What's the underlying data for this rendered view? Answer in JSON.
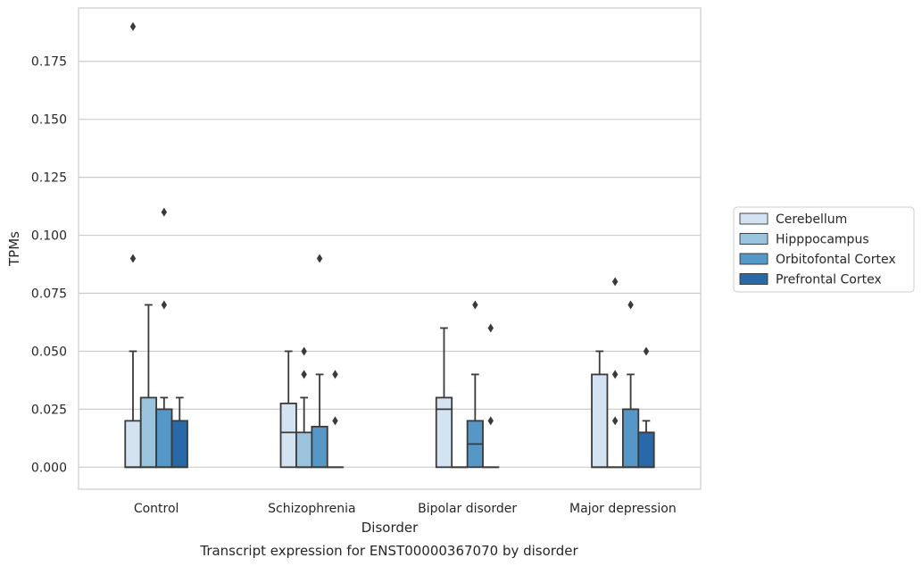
{
  "chart_data": {
    "type": "box",
    "caption": "Transcript expression for ENST00000367070 by disorder",
    "xlabel": "Disorder",
    "ylabel": "TPMs",
    "ylim": [
      -0.0095,
      0.198
    ],
    "yticks": [
      "0.000",
      "0.025",
      "0.050",
      "0.075",
      "0.100",
      "0.125",
      "0.150",
      "0.175"
    ],
    "grid": true,
    "legend_position": "right",
    "categories": [
      "Control",
      "Schizophrenia",
      "Bipolar disorder",
      "Major depression"
    ],
    "series": [
      {
        "name": "Cerebellum",
        "color": "#d4e3f2",
        "boxes": [
          {
            "q1": 0,
            "median": 0,
            "q3": 0.02,
            "whisker_low": 0,
            "whisker_high": 0.05,
            "outliers": [
              0.09,
              0.19
            ]
          },
          {
            "q1": 0,
            "median": 0.015,
            "q3": 0.0275,
            "whisker_low": 0,
            "whisker_high": 0.05,
            "outliers": []
          },
          {
            "q1": 0,
            "median": 0.025,
            "q3": 0.03,
            "whisker_low": 0,
            "whisker_high": 0.06,
            "outliers": []
          },
          {
            "q1": 0,
            "median": 0,
            "q3": 0.04,
            "whisker_low": 0,
            "whisker_high": 0.05,
            "outliers": []
          }
        ]
      },
      {
        "name": "Hipppocampus",
        "color": "#9ac3de",
        "boxes": [
          {
            "q1": 0,
            "median": 0,
            "q3": 0.03,
            "whisker_low": 0,
            "whisker_high": 0.07,
            "outliers": []
          },
          {
            "q1": 0,
            "median": 0,
            "q3": 0.015,
            "whisker_low": 0,
            "whisker_high": 0.03,
            "outliers": [
              0.04,
              0.05
            ]
          },
          {
            "q1": 0,
            "median": 0,
            "q3": 0,
            "whisker_low": 0,
            "whisker_high": 0,
            "outliers": []
          },
          {
            "q1": 0,
            "median": 0,
            "q3": 0,
            "whisker_low": 0,
            "whisker_high": 0,
            "outliers": [
              0.02,
              0.04,
              0.08
            ]
          }
        ]
      },
      {
        "name": "Orbitofontal Cortex",
        "color": "#5597c6",
        "boxes": [
          {
            "q1": 0,
            "median": 0,
            "q3": 0.025,
            "whisker_low": 0,
            "whisker_high": 0.03,
            "outliers": [
              0.07,
              0.11
            ]
          },
          {
            "q1": 0,
            "median": 0,
            "q3": 0.0175,
            "whisker_low": 0,
            "whisker_high": 0.04,
            "outliers": [
              0.09
            ]
          },
          {
            "q1": 0,
            "median": 0.01,
            "q3": 0.02,
            "whisker_low": 0,
            "whisker_high": 0.04,
            "outliers": [
              0.07
            ]
          },
          {
            "q1": 0,
            "median": 0,
            "q3": 0.025,
            "whisker_low": 0,
            "whisker_high": 0.04,
            "outliers": [
              0.07
            ]
          }
        ]
      },
      {
        "name": "Prefrontal Cortex",
        "color": "#2a69a8",
        "boxes": [
          {
            "q1": 0,
            "median": 0,
            "q3": 0.02,
            "whisker_low": 0,
            "whisker_high": 0.03,
            "outliers": []
          },
          {
            "q1": 0,
            "median": 0,
            "q3": 0,
            "whisker_low": 0,
            "whisker_high": 0,
            "outliers": [
              0.02,
              0.04
            ]
          },
          {
            "q1": 0,
            "median": 0,
            "q3": 0,
            "whisker_low": 0,
            "whisker_high": 0,
            "outliers": [
              0.02,
              0.06
            ]
          },
          {
            "q1": 0,
            "median": 0,
            "q3": 0.015,
            "whisker_low": 0,
            "whisker_high": 0.02,
            "outliers": [
              0.05
            ]
          }
        ]
      }
    ]
  }
}
